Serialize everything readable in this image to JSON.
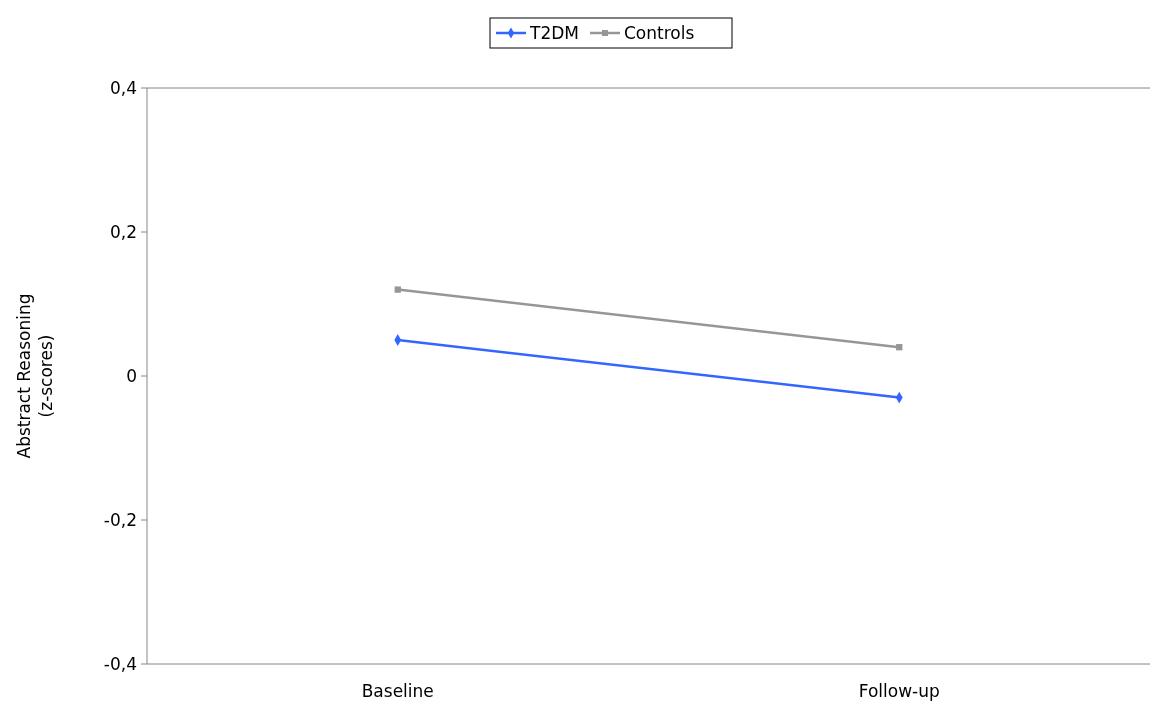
{
  "chart_data": {
    "type": "line",
    "ylabel": "Abstract Reasoning\n(z-scores)",
    "categories": [
      "Baseline",
      "Follow-up"
    ],
    "series": [
      {
        "name": "T2DM",
        "color": "#3366ff",
        "marker": "diamond",
        "values": [
          0.05,
          -0.03
        ]
      },
      {
        "name": "Controls",
        "color": "#969696",
        "marker": "square",
        "values": [
          0.12,
          0.04
        ]
      }
    ],
    "ylim": [
      -0.4,
      0.4
    ],
    "yticks": [
      {
        "value": -0.4,
        "label": "-0,4"
      },
      {
        "value": -0.2,
        "label": "-0,2"
      },
      0,
      {
        "value": 0.2,
        "label": "0,2"
      },
      {
        "value": 0.4,
        "label": "0,4"
      }
    ],
    "legend": "top",
    "grid": false
  }
}
